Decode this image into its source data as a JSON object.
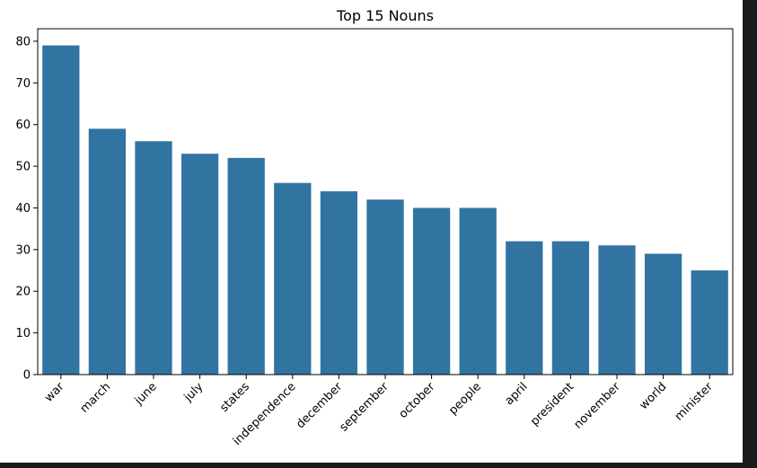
{
  "chart_data": {
    "type": "bar",
    "title": "Top 15 Nouns",
    "xlabel": "",
    "ylabel": "",
    "categories": [
      "war",
      "march",
      "june",
      "july",
      "states",
      "independence",
      "december",
      "september",
      "october",
      "people",
      "april",
      "president",
      "november",
      "world",
      "minister"
    ],
    "values": [
      79,
      59,
      56,
      53,
      52,
      46,
      44,
      42,
      40,
      40,
      32,
      32,
      31,
      29,
      25
    ],
    "ylim": [
      0,
      83
    ],
    "yticks": [
      0,
      10,
      20,
      30,
      40,
      50,
      60,
      70,
      80
    ],
    "grid": false,
    "bar_color": "#3274a1",
    "x_tick_rotation": 45
  },
  "frame_colors": {
    "background": "#ffffff",
    "border": "#1c1c1c"
  }
}
